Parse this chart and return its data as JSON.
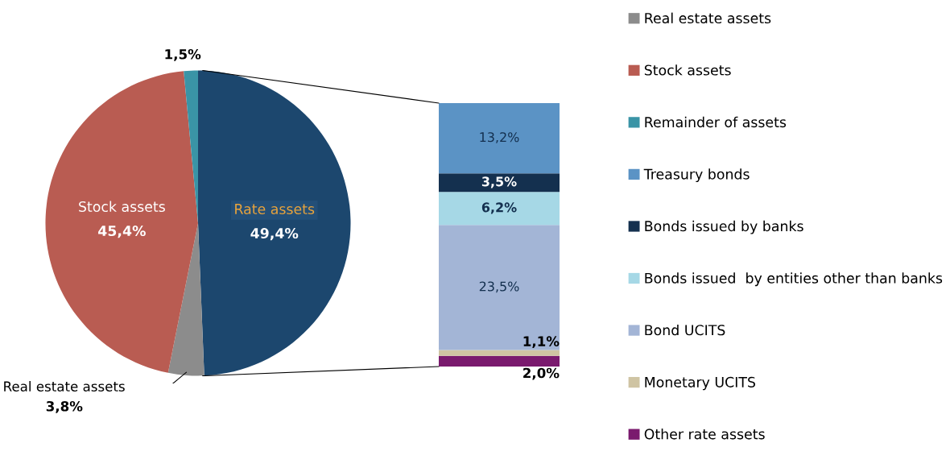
{
  "chart_data": [
    {
      "type": "pie",
      "categories": [
        "Rate assets",
        "Real estate assets",
        "Stock assets",
        null
      ],
      "values": [
        49.4,
        3.8,
        45.4,
        1.5
      ],
      "colors": [
        "#1c476e",
        "#8c8c8c",
        "#b95c52",
        "#3a94a6"
      ],
      "value_labels": [
        "49,4%",
        "3,8%",
        "45,4%",
        "1,5%"
      ]
    },
    {
      "type": "bar",
      "stacked": true,
      "categories": [
        null
      ],
      "legend": "right",
      "series": [
        {
          "name": "Other rate assets",
          "color": "#7a1a6e",
          "values": [
            2.0
          ],
          "value_labels": [
            "2,0%"
          ]
        },
        {
          "name": "Monetary UCITS",
          "color": "#cfc4a3",
          "values": [
            1.1
          ],
          "value_labels": [
            "1,1%"
          ]
        },
        {
          "name": "Bond UCITS",
          "color": "#a3b5d6",
          "values": [
            23.5
          ],
          "value_labels": [
            "23,5%"
          ]
        },
        {
          "name": "Bonds issued  by entities other than banks",
          "color": "#a6d8e6",
          "values": [
            6.2
          ],
          "value_labels": [
            "6,2%"
          ]
        },
        {
          "name": "Bonds issued by banks",
          "color": "#14304f",
          "values": [
            3.5
          ],
          "value_labels": [
            "3,5%"
          ]
        },
        {
          "name": "Treasury bonds",
          "color": "#5b93c5",
          "values": [
            13.2
          ],
          "value_labels": [
            "13,2%"
          ]
        },
        {
          "name": "Remainder of assets",
          "color": "#3a94a6",
          "values": [
            null
          ]
        },
        {
          "name": "Stock assets",
          "color": "#b95c52",
          "values": [
            null
          ]
        },
        {
          "name": "Real estate assets",
          "color": "#8c8c8c",
          "values": [
            null
          ]
        }
      ]
    }
  ]
}
